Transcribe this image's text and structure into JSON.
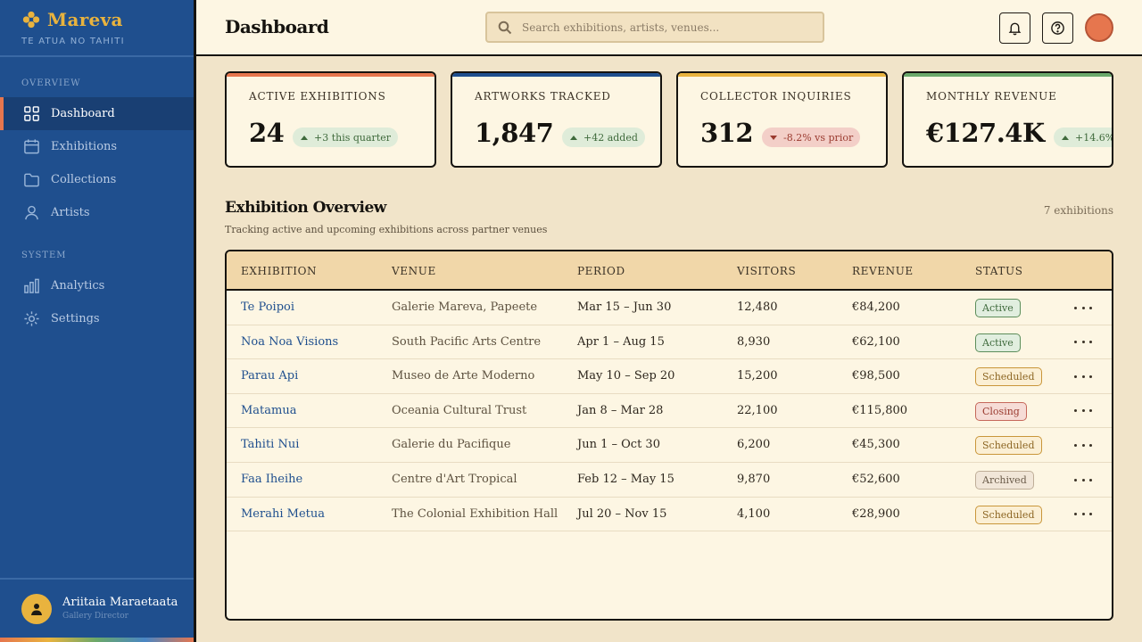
{
  "brand": {
    "name": "Mareva",
    "tagline": "TE ATUA NO TAHITI"
  },
  "nav": {
    "section_overview": "OVERVIEW",
    "section_system": "SYSTEM",
    "items": [
      {
        "label": "Dashboard",
        "icon": "grid-icon",
        "active": true
      },
      {
        "label": "Exhibitions",
        "icon": "calendar-icon"
      },
      {
        "label": "Collections",
        "icon": "folder-icon"
      },
      {
        "label": "Artists",
        "icon": "user-icon"
      },
      {
        "label": "Analytics",
        "icon": "bar-chart-icon"
      },
      {
        "label": "Settings",
        "icon": "gear-icon"
      }
    ]
  },
  "user": {
    "name": "Ariitaia Maraetaata",
    "role": "Gallery Director"
  },
  "header": {
    "title": "Dashboard",
    "search_placeholder": "Search exhibitions, artists, venues...",
    "icons": [
      "bell-icon",
      "help-icon",
      "avatar"
    ]
  },
  "stats": [
    {
      "label": "ACTIVE EXHIBITIONS",
      "value": "24",
      "delta": "+3 this quarter",
      "trend": "up",
      "accent": "#e6764e"
    },
    {
      "label": "ARTWORKS TRACKED",
      "value": "1,847",
      "delta": "+42 added",
      "trend": "up",
      "accent": "#1f4f8e"
    },
    {
      "label": "COLLECTOR INQUIRIES",
      "value": "312",
      "delta": "-8.2% vs prior",
      "trend": "down",
      "accent": "#e9b33e"
    },
    {
      "label": "MONTHLY REVENUE",
      "value": "€127.4K",
      "delta": "+14.6%",
      "trend": "up",
      "accent": "#6aa86a"
    }
  ],
  "section": {
    "title": "Exhibition Overview",
    "subtitle": "Tracking active and upcoming exhibitions across partner venues",
    "count": "7 exhibitions"
  },
  "table": {
    "columns": [
      "EXHIBITION",
      "VENUE",
      "PERIOD",
      "VISITORS",
      "REVENUE",
      "STATUS"
    ],
    "rows": [
      {
        "name": "Te Poipoi",
        "venue": "Galerie Mareva, Papeete",
        "period": "Mar 15 – Jun 30",
        "visitors": "12,480",
        "revenue": "€84,200",
        "status": "Active",
        "status_kind": "active"
      },
      {
        "name": "Noa Noa Visions",
        "venue": "South Pacific Arts Centre",
        "period": "Apr 1 – Aug 15",
        "visitors": "8,930",
        "revenue": "€62,100",
        "status": "Active",
        "status_kind": "active"
      },
      {
        "name": "Parau Api",
        "venue": "Museo de Arte Moderno",
        "period": "May 10 – Sep 20",
        "visitors": "15,200",
        "revenue": "€98,500",
        "status": "Scheduled",
        "status_kind": "scheduled"
      },
      {
        "name": "Matamua",
        "venue": "Oceania Cultural Trust",
        "period": "Jan 8 – Mar 28",
        "visitors": "22,100",
        "revenue": "€115,800",
        "status": "Closing",
        "status_kind": "closing"
      },
      {
        "name": "Tahiti Nui",
        "venue": "Galerie du Pacifique",
        "period": "Jun 1 – Oct 30",
        "visitors": "6,200",
        "revenue": "€45,300",
        "status": "Scheduled",
        "status_kind": "scheduled"
      },
      {
        "name": "Faa Iheihe",
        "venue": "Centre d'Art Tropical",
        "period": "Feb 12 – May 15",
        "visitors": "9,870",
        "revenue": "€52,600",
        "status": "Archived",
        "status_kind": "archived"
      },
      {
        "name": "Merahi Metua",
        "venue": "The Colonial Exhibition Hall",
        "period": "Jul 20 – Nov 15",
        "visitors": "4,100",
        "revenue": "€28,900",
        "status": "Scheduled",
        "status_kind": "scheduled"
      }
    ]
  }
}
